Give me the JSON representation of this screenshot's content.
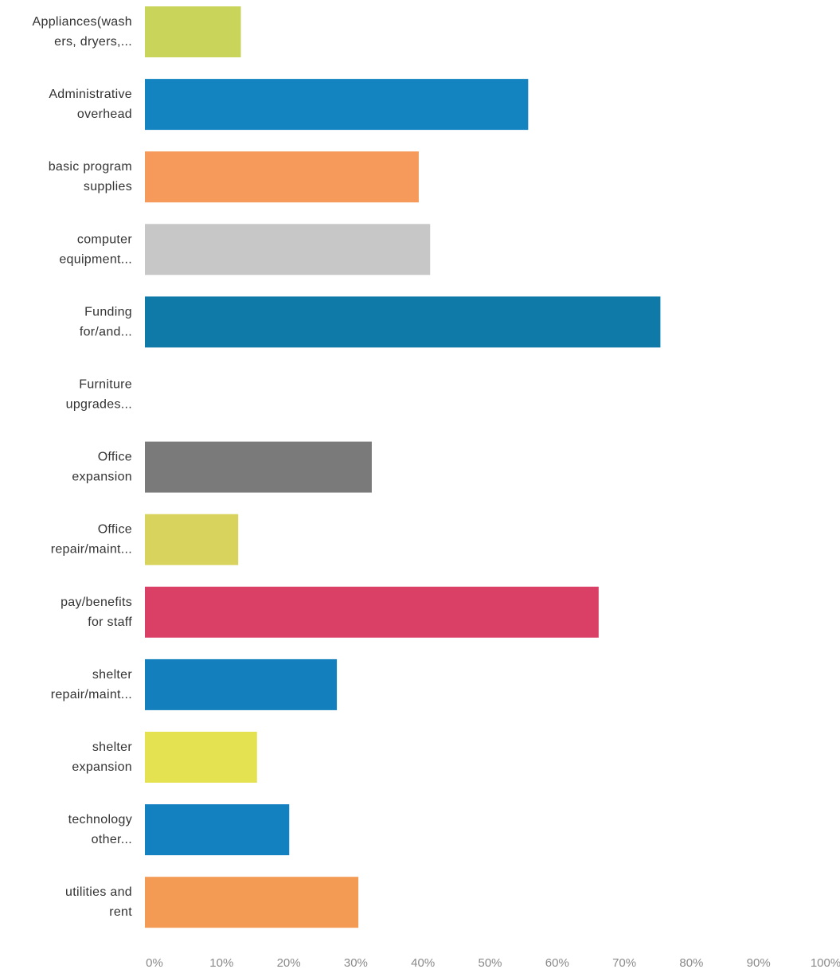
{
  "chart_data": {
    "type": "bar",
    "orientation": "horizontal",
    "categories": [
      [
        "Appliances(wash",
        "ers, dryers,..."
      ],
      [
        "Administrative",
        "overhead"
      ],
      [
        "basic program",
        "supplies"
      ],
      [
        "computer",
        "equipment..."
      ],
      [
        "Funding",
        "for/and..."
      ],
      [
        "Furniture",
        "upgrades..."
      ],
      [
        "Office",
        "expansion"
      ],
      [
        "Office",
        "repair/maint..."
      ],
      [
        "pay/benefits",
        "for staff"
      ],
      [
        "shelter",
        "repair/maint..."
      ],
      [
        "shelter",
        "expansion"
      ],
      [
        "technology",
        "other..."
      ],
      [
        "utilities and",
        "rent"
      ]
    ],
    "values": [
      14.3,
      57.1,
      40.8,
      42.5,
      76.8,
      0,
      33.8,
      13.9,
      67.6,
      28.6,
      16.7,
      21.5,
      31.8
    ],
    "colors": [
      "#c9d45a",
      "#1384bf",
      "#f59a5a",
      "#c7c7c7",
      "#0f79a8",
      "#bbbbbb",
      "#7a7a7a",
      "#d8d35c",
      "#da3f66",
      "#1380bd",
      "#e4e250",
      "#1380c0",
      "#f39a54"
    ],
    "xlim": [
      0,
      100
    ],
    "xticks": [
      "0%",
      "10%",
      "20%",
      "30%",
      "40%",
      "50%",
      "60%",
      "70%",
      "80%",
      "90%",
      "100%"
    ],
    "title": "",
    "xlabel": "",
    "ylabel": "",
    "grid": false,
    "legend": "none"
  }
}
